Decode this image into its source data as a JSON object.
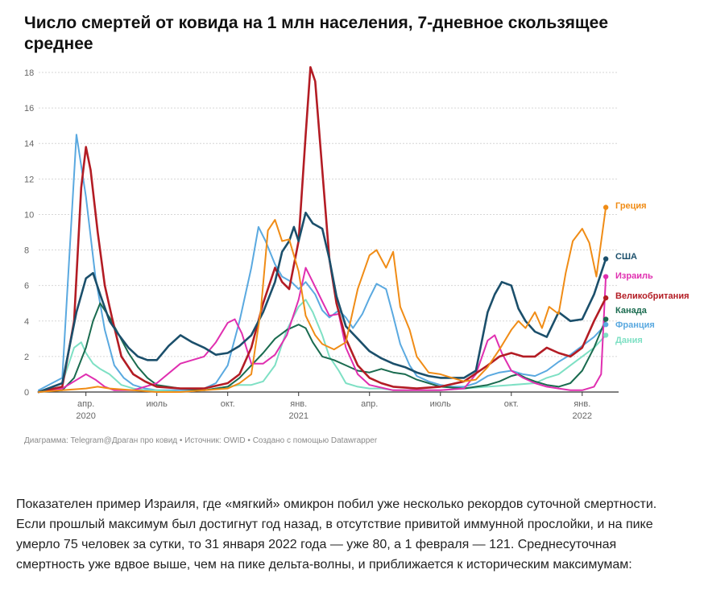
{
  "chart_data": {
    "type": "line",
    "title": "Число смертей от ковида на 1 млн населения, 7-дневное скользящее среднее",
    "ylim": [
      0,
      18
    ],
    "y_ticks": [
      0,
      2,
      4,
      6,
      8,
      10,
      12,
      14,
      16,
      18
    ],
    "x_ticks": [
      {
        "label": "апр.",
        "sub": "2020",
        "t": 3
      },
      {
        "label": "июль",
        "sub": "",
        "t": 6
      },
      {
        "label": "окт.",
        "sub": "",
        "t": 9
      },
      {
        "label": "янв.",
        "sub": "2021",
        "t": 12
      },
      {
        "label": "апр.",
        "sub": "",
        "t": 15
      },
      {
        "label": "июль",
        "sub": "",
        "t": 18
      },
      {
        "label": "окт.",
        "sub": "",
        "t": 21
      },
      {
        "label": "янв.",
        "sub": "2022",
        "t": 24
      }
    ],
    "xlim": [
      1,
      25.2
    ],
    "grid": true,
    "legend_placement": "right, at line ends",
    "series": [
      {
        "name": "Франция",
        "color": "#5aa9e0",
        "x": [
          1.0,
          2.0,
          2.6,
          3.0,
          3.4,
          3.8,
          4.2,
          4.6,
          5.0,
          5.5,
          6.0,
          6.5,
          7.0,
          7.5,
          8.0,
          8.5,
          9.0,
          9.5,
          10.0,
          10.3,
          10.6,
          11.0,
          11.3,
          11.7,
          12.0,
          12.3,
          12.7,
          13.0,
          13.3,
          13.7,
          14.0,
          14.3,
          14.7,
          15.0,
          15.3,
          15.7,
          16.0,
          16.3,
          16.7,
          17.0,
          17.5,
          18.0,
          18.5,
          19.0,
          19.5,
          20.0,
          20.5,
          21.0,
          21.5,
          22.0,
          22.5,
          23.0,
          23.5,
          24.0,
          24.5,
          25.0
        ],
        "y": [
          0.1,
          0.8,
          14.5,
          11,
          6.5,
          3.5,
          1.5,
          0.8,
          0.4,
          0.2,
          0.1,
          0.1,
          0.1,
          0.1,
          0.2,
          0.5,
          1.5,
          4,
          7,
          9.3,
          8.5,
          7.2,
          6.5,
          6.2,
          5.8,
          6.2,
          5.5,
          4.6,
          4.2,
          4.6,
          4.2,
          3.6,
          4.4,
          5.3,
          6.1,
          5.8,
          4.3,
          2.7,
          1.5,
          0.9,
          0.6,
          0.4,
          0.3,
          0.3,
          0.5,
          0.9,
          1.1,
          1.2,
          1.0,
          0.9,
          1.2,
          1.7,
          2.1,
          2.6,
          3.1,
          3.8
        ]
      },
      {
        "name": "Дания",
        "color": "#7ee0c4",
        "x": [
          1.0,
          2.0,
          2.5,
          2.8,
          3.0,
          3.3,
          3.6,
          4.0,
          4.5,
          5.0,
          5.5,
          6.0,
          7.0,
          8.0,
          8.5,
          9.0,
          9.5,
          10.0,
          10.5,
          11.0,
          11.5,
          12.0,
          12.3,
          12.6,
          13.0,
          13.3,
          13.7,
          14.0,
          14.5,
          15.0,
          15.5,
          16.0,
          17.0,
          18.0,
          19.0,
          20.0,
          21.0,
          22.0,
          22.5,
          23.0,
          23.5,
          24.0,
          24.5,
          25.0
        ],
        "y": [
          0,
          0.5,
          2.5,
          2.8,
          2.2,
          1.6,
          1.3,
          1.0,
          0.4,
          0.2,
          0.1,
          0.1,
          0,
          0.1,
          0.2,
          0.3,
          0.4,
          0.4,
          0.6,
          1.5,
          3.5,
          4.8,
          5.2,
          4.5,
          3.2,
          2.0,
          1.2,
          0.5,
          0.3,
          0.2,
          0.2,
          0.1,
          0.1,
          0.1,
          0.2,
          0.3,
          0.4,
          0.5,
          0.8,
          1.0,
          1.5,
          2.0,
          2.5,
          3.2
        ]
      },
      {
        "name": "Канада",
        "color": "#1a6b4f",
        "x": [
          1.0,
          2.0,
          2.5,
          3.0,
          3.3,
          3.6,
          4.0,
          4.4,
          4.8,
          5.2,
          5.6,
          6.0,
          7.0,
          8.0,
          9.0,
          9.5,
          10.0,
          10.5,
          11.0,
          11.5,
          12.0,
          12.3,
          12.6,
          13.0,
          13.5,
          14.0,
          14.5,
          15.0,
          15.5,
          16.0,
          16.5,
          17.0,
          17.5,
          18.0,
          19.0,
          20.0,
          20.5,
          21.0,
          21.3,
          21.6,
          22.0,
          22.5,
          23.0,
          23.5,
          24.0,
          24.5,
          25.0
        ],
        "y": [
          0,
          0.1,
          0.8,
          2.5,
          4,
          5,
          4.2,
          3.2,
          2.2,
          1.4,
          0.8,
          0.4,
          0.2,
          0.1,
          0.3,
          0.8,
          1.5,
          2.2,
          3.0,
          3.5,
          3.8,
          3.6,
          2.8,
          2.0,
          1.8,
          1.5,
          1.2,
          1.1,
          1.3,
          1.1,
          1.0,
          0.7,
          0.5,
          0.3,
          0.2,
          0.4,
          0.6,
          0.9,
          1.0,
          0.8,
          0.6,
          0.4,
          0.3,
          0.5,
          1.2,
          2.5,
          4.1
        ]
      },
      {
        "name": "Израиль",
        "color": "#e02fb0",
        "x": [
          1.0,
          2.0,
          2.5,
          3.0,
          3.4,
          3.8,
          4.2,
          5.0,
          6.0,
          7.0,
          8.0,
          8.5,
          9.0,
          9.3,
          9.6,
          10.0,
          10.5,
          11.0,
          11.5,
          12.0,
          12.3,
          12.6,
          13.0,
          13.3,
          13.7,
          14.0,
          14.5,
          15.0,
          16.0,
          17.0,
          18.0,
          19.0,
          19.5,
          20.0,
          20.3,
          20.6,
          21.0,
          21.5,
          22.0,
          22.5,
          23.0,
          23.5,
          24.0,
          24.5,
          24.8,
          25.0
        ],
        "y": [
          0,
          0.2,
          0.6,
          1.0,
          0.7,
          0.3,
          0.1,
          0.1,
          0.5,
          1.6,
          2.0,
          2.8,
          3.9,
          4.1,
          3.3,
          1.6,
          1.6,
          2.1,
          3.2,
          5.2,
          7.0,
          6.2,
          5.1,
          4.3,
          4.4,
          2.5,
          1.0,
          0.4,
          0.1,
          0.1,
          0.1,
          0.2,
          1.0,
          2.9,
          3.2,
          2.2,
          1.2,
          0.8,
          0.5,
          0.3,
          0.2,
          0.1,
          0.1,
          0.3,
          1.0,
          6.5
        ]
      },
      {
        "name": "Великобритания",
        "color": "#b31c24",
        "x": [
          1.0,
          2.0,
          2.5,
          2.8,
          3.0,
          3.2,
          3.5,
          3.8,
          4.1,
          4.5,
          5.0,
          5.5,
          6.0,
          7.0,
          8.0,
          9.0,
          9.5,
          10.0,
          10.5,
          11.0,
          11.3,
          11.6,
          12.0,
          12.3,
          12.5,
          12.7,
          13.0,
          13.3,
          13.6,
          14.0,
          14.5,
          15.0,
          15.5,
          16.0,
          17.0,
          18.0,
          19.0,
          20.0,
          20.5,
          21.0,
          21.5,
          22.0,
          22.5,
          23.0,
          23.5,
          24.0,
          24.5,
          25.0
        ],
        "y": [
          0,
          0.3,
          4,
          11.5,
          13.8,
          12.5,
          9,
          6,
          4.2,
          2,
          1.0,
          0.6,
          0.3,
          0.2,
          0.2,
          0.5,
          1.0,
          2.5,
          5,
          7,
          6.2,
          5.8,
          8.5,
          14.5,
          18.3,
          17.5,
          12.5,
          7.5,
          5.0,
          3.0,
          1.5,
          0.8,
          0.5,
          0.3,
          0.2,
          0.3,
          0.6,
          1.5,
          2.0,
          2.2,
          2.0,
          2.0,
          2.5,
          2.2,
          2.0,
          2.5,
          4.0,
          5.3
        ]
      },
      {
        "name": "США",
        "color": "#1b4f6b",
        "x": [
          1.0,
          2.0,
          2.6,
          3.0,
          3.3,
          3.6,
          4.0,
          4.4,
          4.8,
          5.2,
          5.6,
          6.0,
          6.5,
          7.0,
          7.5,
          8.0,
          8.5,
          9.0,
          9.5,
          10.0,
          10.5,
          11.0,
          11.3,
          11.6,
          11.8,
          12.0,
          12.3,
          12.6,
          13.0,
          13.3,
          13.6,
          14.0,
          14.5,
          15.0,
          15.5,
          16.0,
          16.5,
          17.0,
          17.5,
          18.0,
          18.5,
          19.0,
          19.5,
          20.0,
          20.3,
          20.6,
          21.0,
          21.3,
          21.6,
          22.0,
          22.5,
          23.0,
          23.5,
          24.0,
          24.5,
          25.0
        ],
        "y": [
          0,
          0.5,
          4.5,
          6.4,
          6.7,
          5.5,
          4.0,
          3.2,
          2.5,
          2.0,
          1.8,
          1.8,
          2.6,
          3.2,
          2.8,
          2.5,
          2.1,
          2.2,
          2.6,
          3.2,
          4.5,
          6.2,
          7.9,
          8.5,
          9.3,
          8.5,
          10.1,
          9.5,
          9.2,
          7.5,
          5.4,
          3.7,
          3.0,
          2.3,
          1.9,
          1.6,
          1.4,
          1.1,
          0.9,
          0.8,
          0.8,
          0.8,
          1.2,
          4.5,
          5.5,
          6.2,
          6.0,
          4.7,
          4.0,
          3.4,
          3.1,
          4.5,
          4.0,
          4.1,
          5.5,
          7.5
        ]
      },
      {
        "name": "Греция",
        "color": "#f08c16",
        "x": [
          1.0,
          2.0,
          3.0,
          3.5,
          4.0,
          5.0,
          6.0,
          7.0,
          8.0,
          9.0,
          9.5,
          10.0,
          10.4,
          10.7,
          11.0,
          11.3,
          11.6,
          12.0,
          12.3,
          12.7,
          13.0,
          13.5,
          14.0,
          14.5,
          15.0,
          15.3,
          15.7,
          16.0,
          16.3,
          16.7,
          17.0,
          17.5,
          18.0,
          18.5,
          19.0,
          19.5,
          20.0,
          20.5,
          21.0,
          21.3,
          21.6,
          22.0,
          22.3,
          22.6,
          23.0,
          23.3,
          23.6,
          24.0,
          24.3,
          24.6,
          25.0
        ],
        "y": [
          0,
          0.1,
          0.2,
          0.3,
          0.2,
          0.1,
          0,
          0,
          0.1,
          0.2,
          0.5,
          1.0,
          4.6,
          9.1,
          9.7,
          8.5,
          8.6,
          6.8,
          4.3,
          3.2,
          2.7,
          2.4,
          2.8,
          5.8,
          7.7,
          8.0,
          7.0,
          7.9,
          4.8,
          3.5,
          2.0,
          1.1,
          1.0,
          0.8,
          0.6,
          0.7,
          1.4,
          2.4,
          3.5,
          4.0,
          3.6,
          4.5,
          3.6,
          4.8,
          4.4,
          6.7,
          8.5,
          9.2,
          8.4,
          6.5,
          10.4
        ]
      }
    ]
  },
  "source_line": "Диаграмма: Telegram@Драган про ковид • Источник: OWID • Создано с помощью Datawrapper",
  "article_text": "Показателен пример Израиля, где «мягкий» омикрон побил уже несколько рекордов суточной смертности. Если прошлый максимум был достигнут год назад, в отсутствие привитой иммунной прослойки, и на пике умерло 75 человек за сутки, то 31 января 2022 года — уже 80, а 1 февраля — 121. Среднесуточная смертность уже вдвое выше, чем на пике дельта-волны, и приближается к историческим максимумам:"
}
